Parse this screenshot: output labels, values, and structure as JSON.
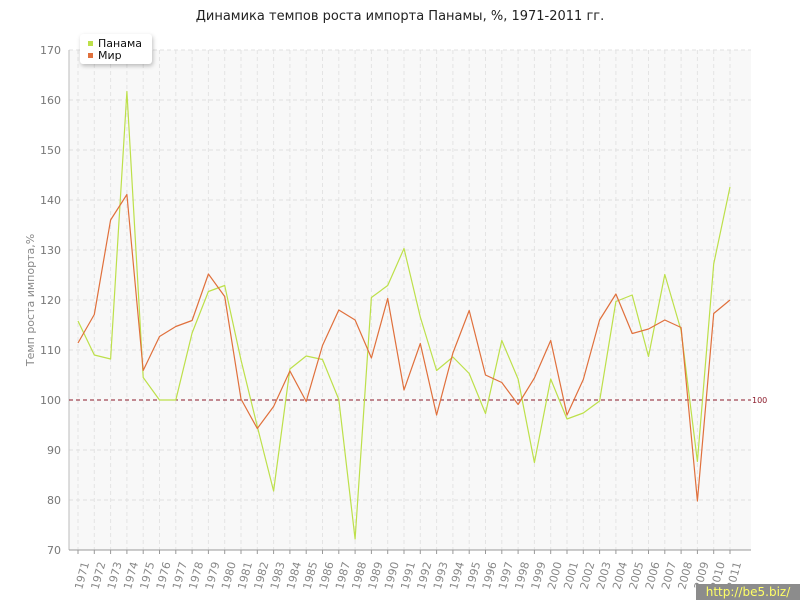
{
  "chart_data": {
    "type": "line",
    "title": "Динамика темпов роста импорта Панамы, %, 1971-2011 гг.",
    "xlabel": "",
    "ylabel": "Темп роста импорта,%",
    "ylim": [
      70,
      170
    ],
    "yticks": [
      70,
      80,
      90,
      100,
      110,
      120,
      130,
      140,
      150,
      160,
      170
    ],
    "x": [
      "1971",
      "1972",
      "1973",
      "1974",
      "1975",
      "1976",
      "1977",
      "1978",
      "1979",
      "1980",
      "1981",
      "1982",
      "1983",
      "1984",
      "1985",
      "1986",
      "1987",
      "1988",
      "1989",
      "1990",
      "1991",
      "1992",
      "1993",
      "1994",
      "1995",
      "1996",
      "1997",
      "1998",
      "1999",
      "2000",
      "2001",
      "2002",
      "2003",
      "2004",
      "2005",
      "2006",
      "2007",
      "2008",
      "2009",
      "2010",
      "2011"
    ],
    "series": [
      {
        "name": "Панама",
        "color": "#bde04a",
        "values": [
          115.8,
          109.0,
          108.2,
          161.7,
          104.5,
          100.0,
          100.0,
          113.4,
          121.7,
          122.9,
          108.0,
          94.7,
          81.8,
          106.2,
          108.8,
          108.1,
          100.1,
          72.2,
          120.5,
          122.9,
          130.3,
          116.6,
          105.9,
          108.6,
          105.3,
          97.3,
          111.9,
          104.2,
          87.5,
          104.2,
          96.2,
          97.4,
          99.8,
          119.7,
          121.0,
          108.7,
          125.1,
          113.9,
          87.7,
          127.2,
          142.6
        ]
      },
      {
        "name": "Мир",
        "color": "#e0703c",
        "values": [
          111.4,
          117.1,
          136.0,
          141.1,
          105.9,
          112.7,
          114.7,
          115.9,
          125.2,
          120.7,
          100.2,
          94.3,
          98.7,
          105.8,
          99.7,
          110.9,
          118.0,
          116.0,
          108.4,
          120.3,
          102.0,
          111.3,
          97.0,
          109.4,
          117.9,
          105.0,
          103.5,
          99.1,
          104.4,
          111.9,
          97.0,
          104.1,
          116.0,
          121.2,
          113.3,
          114.2,
          116.0,
          114.5,
          79.8,
          117.3,
          120.0
        ]
      }
    ],
    "reference_line": {
      "value": 100,
      "label": "100",
      "color": "#8b1a2a"
    },
    "grid": true,
    "legend": "top-left"
  },
  "watermark": "http://be5.biz/"
}
